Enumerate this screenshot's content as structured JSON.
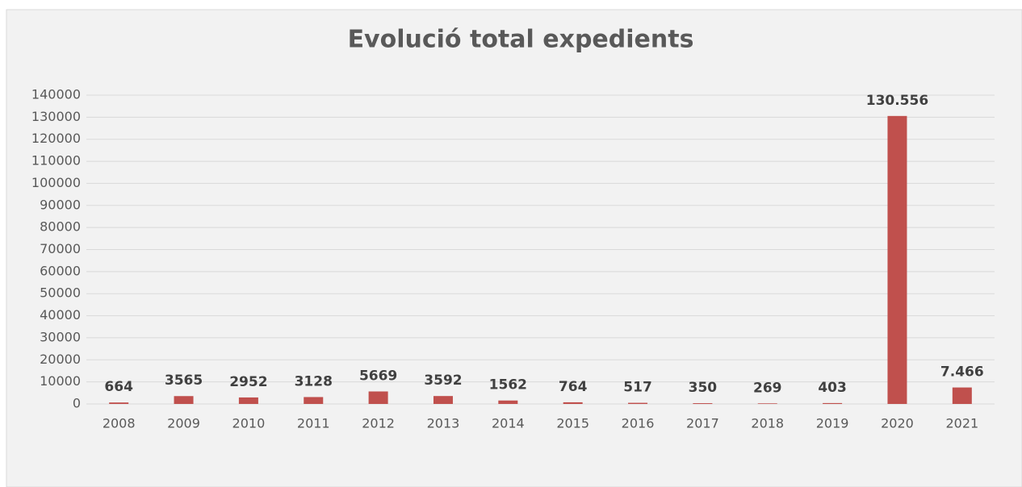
{
  "chart_data": {
    "type": "bar",
    "title": "Evolució total expedients",
    "categories": [
      "2008",
      "2009",
      "2010",
      "2011",
      "2012",
      "2013",
      "2014",
      "2015",
      "2016",
      "2017",
      "2018",
      "2019",
      "2020",
      "2021"
    ],
    "values": [
      664,
      3565,
      2952,
      3128,
      5669,
      3592,
      1562,
      764,
      517,
      350,
      269,
      403,
      130556,
      7466
    ],
    "value_labels": [
      "664",
      "3565",
      "2952",
      "3128",
      "5669",
      "3592",
      "1562",
      "764",
      "517",
      "350",
      "269",
      "403",
      "130.556",
      "7.466"
    ],
    "color": "#c0504d",
    "ylim": [
      0,
      140000
    ],
    "yticks": [
      0,
      10000,
      20000,
      30000,
      40000,
      50000,
      60000,
      70000,
      80000,
      90000,
      100000,
      110000,
      120000,
      130000,
      140000
    ],
    "grid": true
  }
}
